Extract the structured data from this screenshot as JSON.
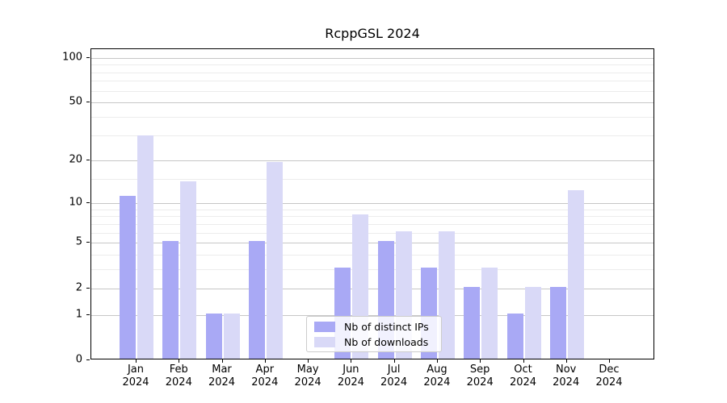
{
  "chart_data": {
    "type": "bar",
    "title": "RcppGSL 2024",
    "categories": [
      "Jan 2024",
      "Feb 2024",
      "Mar 2024",
      "Apr 2024",
      "May 2024",
      "Jun 2024",
      "Jul 2024",
      "Aug 2024",
      "Sep 2024",
      "Oct 2024",
      "Nov 2024",
      "Dec 2024"
    ],
    "series": [
      {
        "key": "ips",
        "name": "Nb of distinct IPs",
        "color": "#a9a9f5",
        "values": [
          11,
          5,
          1,
          5,
          0,
          3,
          5,
          3,
          2,
          1,
          2,
          0
        ]
      },
      {
        "key": "downloads",
        "name": "Nb of downloads",
        "color": "#d9d9f7",
        "values": [
          29,
          14,
          1,
          19,
          0,
          8,
          6,
          6,
          3,
          2,
          12,
          0
        ]
      }
    ],
    "xlabel": "",
    "ylabel": "",
    "yscale": "log1p",
    "ylim": [
      0,
      114
    ],
    "yticks": [
      0,
      1,
      2,
      5,
      10,
      20,
      50,
      100
    ],
    "yticks_minor": [
      3,
      4,
      6,
      7,
      8,
      9,
      15,
      30,
      40,
      60,
      70,
      80,
      90
    ],
    "grid": true,
    "legend_position": "lower center",
    "colors": {
      "grid_major": "#c6c6c6",
      "grid_minor": "#ececec",
      "spine": "#000000",
      "background": "#ffffff",
      "legend_border": "#cccccc"
    }
  }
}
